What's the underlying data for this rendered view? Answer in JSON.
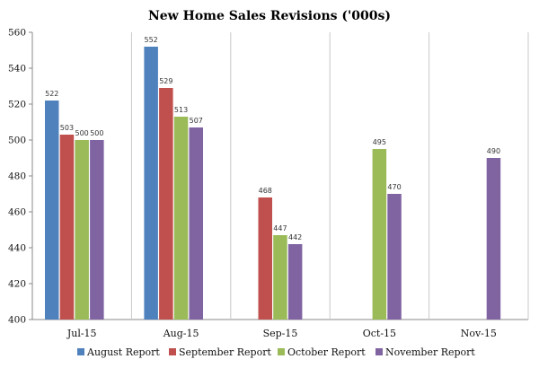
{
  "chart_data": {
    "type": "bar",
    "title": "New Home Sales Revisions ('000s)",
    "xlabel": "",
    "ylabel": "",
    "ylim": [
      400,
      560
    ],
    "yticks": [
      400,
      420,
      440,
      460,
      480,
      500,
      520,
      540,
      560
    ],
    "categories": [
      "Jul-15",
      "Aug-15",
      "Sep-15",
      "Oct-15",
      "Nov-15"
    ],
    "grid": "vertical separators between categories",
    "legend_position": "bottom",
    "series": [
      {
        "name": "August Report",
        "color": "#4f81bd",
        "values": [
          522,
          552,
          null,
          null,
          null
        ]
      },
      {
        "name": "September Report",
        "color": "#c0504d",
        "values": [
          503,
          529,
          468,
          null,
          null
        ]
      },
      {
        "name": "October Report",
        "color": "#9bbb59",
        "values": [
          500,
          513,
          447,
          495,
          null
        ]
      },
      {
        "name": "November Report",
        "color": "#8064a2",
        "values": [
          500,
          507,
          442,
          470,
          490
        ]
      }
    ]
  }
}
